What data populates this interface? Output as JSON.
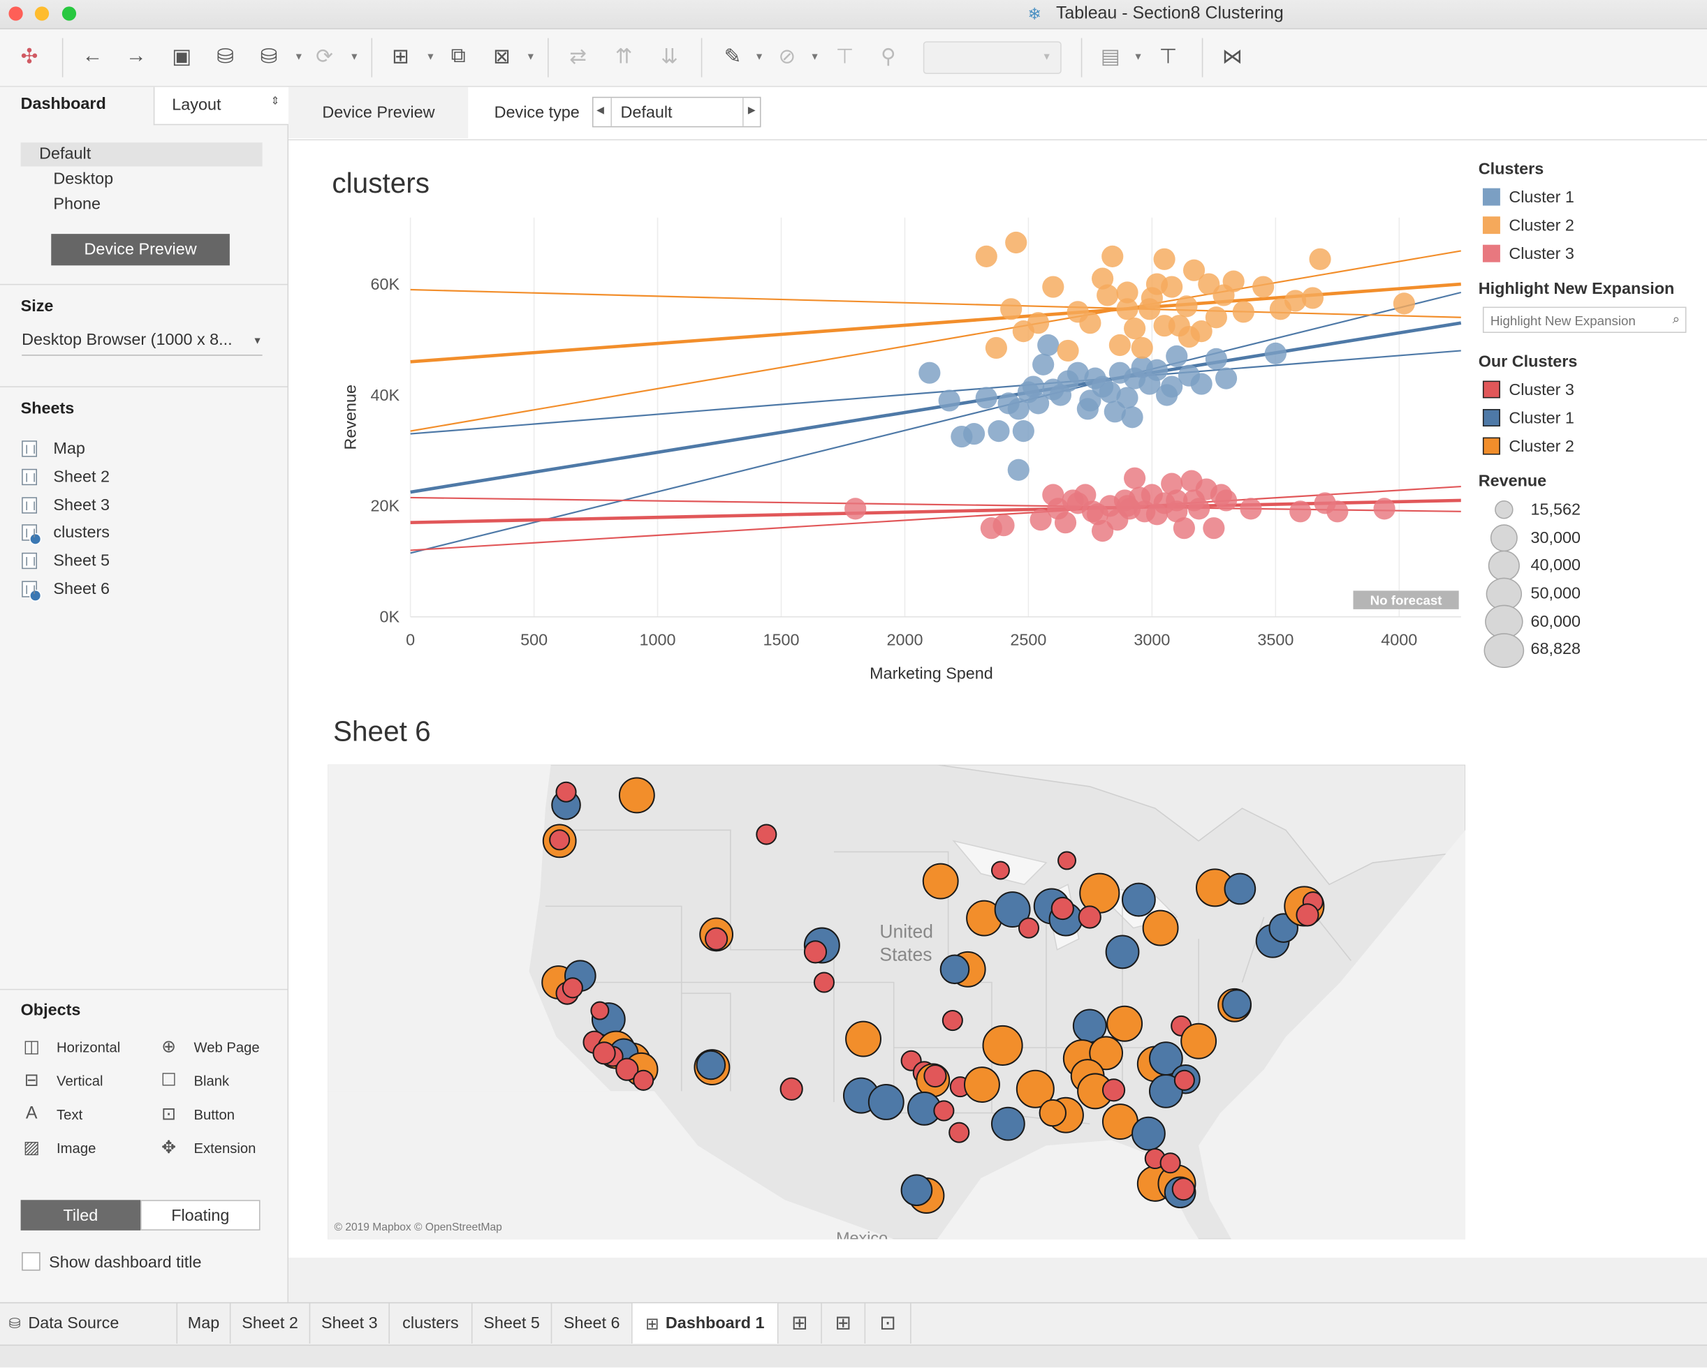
{
  "window": {
    "title": "Tableau - Section8 Clustering"
  },
  "left_panel": {
    "tab_dashboard": "Dashboard",
    "tab_layout": "Layout",
    "device_list": [
      "Default",
      "Desktop",
      "Phone"
    ],
    "device_preview_button": "Device Preview",
    "size_heading": "Size",
    "size_value": "Desktop Browser (1000 x 8...",
    "sheets_heading": "Sheets",
    "sheets": [
      "Map",
      "Sheet 2",
      "Sheet 3",
      "clusters",
      "Sheet 5",
      "Sheet 6"
    ],
    "objects_heading": "Objects",
    "objects": {
      "horizontal": "Horizontal",
      "web_page": "Web Page",
      "vertical": "Vertical",
      "blank": "Blank",
      "text": "Text",
      "button": "Button",
      "image": "Image",
      "extension": "Extension"
    },
    "tiled": "Tiled",
    "floating": "Floating",
    "show_title": "Show dashboard title"
  },
  "device_bar": {
    "device_preview": "Device Preview",
    "device_type_label": "Device type",
    "device_type_value": "Default"
  },
  "scatter": {
    "title": "clusters",
    "no_forecast": "No forecast"
  },
  "legends": {
    "clusters_heading": "Clusters",
    "clusters": [
      {
        "label": "Cluster 1",
        "color": "#7b9fc3"
      },
      {
        "label": "Cluster 2",
        "color": "#f5a95b"
      },
      {
        "label": "Cluster 3",
        "color": "#e8787f"
      }
    ],
    "highlight_heading": "Highlight New Expansion",
    "highlight_placeholder": "Highlight New Expansion",
    "our_clusters_heading": "Our Clusters",
    "our_clusters": [
      {
        "label": "Cluster 3",
        "color": "#e15759"
      },
      {
        "label": "Cluster 1",
        "color": "#4e79a7"
      },
      {
        "label": "Cluster 2",
        "color": "#f28e2b"
      }
    ],
    "revenue_heading": "Revenue",
    "revenue_sizes": [
      "15,562",
      "30,000",
      "40,000",
      "50,000",
      "60,000",
      "68,828"
    ]
  },
  "map": {
    "title": "Sheet 6",
    "label_country": "United\nStates",
    "label_country_line1": "United",
    "label_country_line2": "States",
    "label_mexico": "Mexico",
    "attribution": "© 2019 Mapbox © OpenStreetMap"
  },
  "tabs": {
    "data_source": "Data Source",
    "items": [
      "Map",
      "Sheet 2",
      "Sheet 3",
      "clusters",
      "Sheet 5",
      "Sheet 6"
    ],
    "active": "Dashboard 1"
  },
  "chart_data": {
    "type": "scatter",
    "title": "clusters",
    "xlabel": "Marketing Spend",
    "ylabel": "Revenue",
    "xlim": [
      0,
      4250
    ],
    "ylim": [
      0,
      72000
    ],
    "x_ticks": [
      "0",
      "500",
      "1000",
      "1500",
      "2000",
      "2500",
      "3000",
      "3500",
      "4000"
    ],
    "y_ticks": [
      "0K",
      "20K",
      "40K",
      "60K"
    ],
    "series": [
      {
        "name": "Cluster 1",
        "color": "#7b9fc3",
        "points": [
          [
            2100,
            44000
          ],
          [
            2180,
            39000
          ],
          [
            2230,
            32500
          ],
          [
            2280,
            33000
          ],
          [
            2330,
            39500
          ],
          [
            2380,
            33500
          ],
          [
            2420,
            38500
          ],
          [
            2460,
            37500
          ],
          [
            2480,
            33500
          ],
          [
            2500,
            40500
          ],
          [
            2520,
            41500
          ],
          [
            2540,
            38500
          ],
          [
            2560,
            45500
          ],
          [
            2580,
            49000
          ],
          [
            2600,
            41000
          ],
          [
            2630,
            40000
          ],
          [
            2660,
            42500
          ],
          [
            2700,
            44000
          ],
          [
            2740,
            37500
          ],
          [
            2770,
            43000
          ],
          [
            2800,
            41500
          ],
          [
            2830,
            40500
          ],
          [
            2850,
            37000
          ],
          [
            2870,
            44000
          ],
          [
            2900,
            39500
          ],
          [
            2930,
            43000
          ],
          [
            2960,
            45000
          ],
          [
            2990,
            42000
          ],
          [
            3020,
            44500
          ],
          [
            3060,
            40000
          ],
          [
            3100,
            47000
          ],
          [
            3150,
            43500
          ],
          [
            3200,
            42000
          ],
          [
            3260,
            46500
          ],
          [
            3500,
            47500
          ],
          [
            2460,
            26500
          ],
          [
            2750,
            39000
          ],
          [
            2920,
            36000
          ],
          [
            3080,
            41500
          ],
          [
            3300,
            43000
          ]
        ]
      },
      {
        "name": "Cluster 2",
        "color": "#f5a95b",
        "points": [
          [
            2330,
            65000
          ],
          [
            2450,
            67500
          ],
          [
            2370,
            48500
          ],
          [
            2430,
            55500
          ],
          [
            2540,
            53000
          ],
          [
            2600,
            59500
          ],
          [
            2660,
            48000
          ],
          [
            2700,
            55000
          ],
          [
            2750,
            53000
          ],
          [
            2800,
            61000
          ],
          [
            2820,
            58000
          ],
          [
            2840,
            65000
          ],
          [
            2870,
            49000
          ],
          [
            2900,
            58500
          ],
          [
            2930,
            52000
          ],
          [
            2960,
            48500
          ],
          [
            2990,
            55500
          ],
          [
            3020,
            60000
          ],
          [
            3050,
            64500
          ],
          [
            3080,
            59500
          ],
          [
            3110,
            52500
          ],
          [
            3140,
            56000
          ],
          [
            3170,
            62500
          ],
          [
            3200,
            51500
          ],
          [
            3230,
            60000
          ],
          [
            3260,
            54000
          ],
          [
            3290,
            58000
          ],
          [
            3330,
            60500
          ],
          [
            3370,
            55000
          ],
          [
            3450,
            59500
          ],
          [
            3520,
            55500
          ],
          [
            3580,
            57000
          ],
          [
            3650,
            57500
          ],
          [
            3680,
            64500
          ],
          [
            4020,
            56500
          ],
          [
            2480,
            51500
          ],
          [
            2900,
            55500
          ],
          [
            3050,
            52500
          ],
          [
            3150,
            50500
          ],
          [
            3000,
            57500
          ]
        ]
      },
      {
        "name": "Cluster 3",
        "color": "#e8787f",
        "points": [
          [
            1800,
            19500
          ],
          [
            2350,
            16000
          ],
          [
            2400,
            16500
          ],
          [
            2550,
            17500
          ],
          [
            2600,
            22000
          ],
          [
            2620,
            19500
          ],
          [
            2650,
            17000
          ],
          [
            2680,
            21000
          ],
          [
            2700,
            20500
          ],
          [
            2730,
            22000
          ],
          [
            2760,
            19000
          ],
          [
            2780,
            18500
          ],
          [
            2800,
            15500
          ],
          [
            2830,
            20000
          ],
          [
            2860,
            17500
          ],
          [
            2890,
            21000
          ],
          [
            2910,
            19500
          ],
          [
            2930,
            25000
          ],
          [
            2950,
            21500
          ],
          [
            2970,
            19000
          ],
          [
            3000,
            22000
          ],
          [
            3020,
            18500
          ],
          [
            3050,
            20500
          ],
          [
            3080,
            24000
          ],
          [
            3100,
            21000
          ],
          [
            3130,
            16000
          ],
          [
            3160,
            24500
          ],
          [
            3190,
            19500
          ],
          [
            3220,
            23000
          ],
          [
            3250,
            16000
          ],
          [
            3300,
            21000
          ],
          [
            3400,
            19500
          ],
          [
            3600,
            19000
          ],
          [
            3700,
            20500
          ],
          [
            3750,
            19000
          ],
          [
            3940,
            19500
          ],
          [
            2900,
            20000
          ],
          [
            3100,
            19000
          ],
          [
            3170,
            21000
          ],
          [
            3280,
            22000
          ]
        ]
      }
    ],
    "trend_lines": [
      {
        "series": "Cluster 1",
        "kind": "fit",
        "from": [
          0,
          22500
        ],
        "to": [
          4250,
          53000
        ]
      },
      {
        "series": "Cluster 1",
        "kind": "upper",
        "from": [
          0,
          33000
        ],
        "to": [
          4250,
          48000
        ]
      },
      {
        "series": "Cluster 1",
        "kind": "lower",
        "from": [
          0,
          11500
        ],
        "to": [
          4250,
          58500
        ]
      },
      {
        "series": "Cluster 2",
        "kind": "fit",
        "from": [
          0,
          46000
        ],
        "to": [
          4250,
          60000
        ]
      },
      {
        "series": "Cluster 2",
        "kind": "upper",
        "from": [
          0,
          59000
        ],
        "to": [
          4250,
          54000
        ]
      },
      {
        "series": "Cluster 2",
        "kind": "lower",
        "from": [
          0,
          33500
        ],
        "to": [
          4250,
          66000
        ]
      },
      {
        "series": "Cluster 3",
        "kind": "fit",
        "from": [
          0,
          17000
        ],
        "to": [
          4250,
          21000
        ]
      },
      {
        "series": "Cluster 3",
        "kind": "upper",
        "from": [
          0,
          21500
        ],
        "to": [
          4250,
          19000
        ]
      },
      {
        "series": "Cluster 3",
        "kind": "lower",
        "from": [
          0,
          12000
        ],
        "to": [
          4250,
          23500
        ]
      }
    ],
    "legend_position": "right",
    "grid": "vertical"
  }
}
